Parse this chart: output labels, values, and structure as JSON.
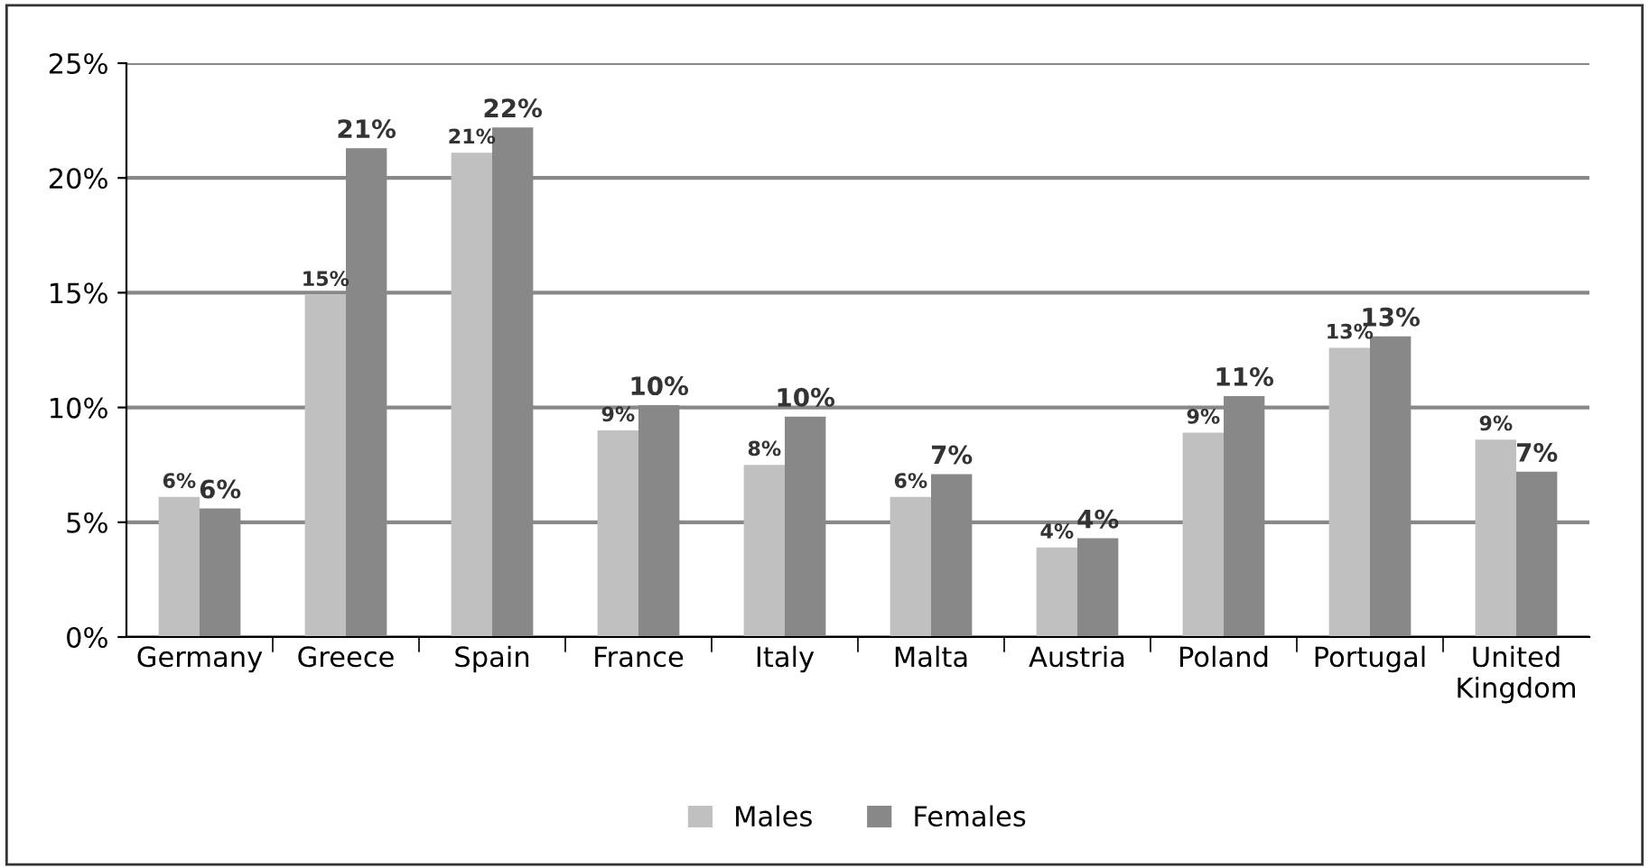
{
  "chart_data": {
    "type": "bar",
    "categories": [
      "Germany",
      "Greece",
      "Spain",
      "France",
      "Italy",
      "Malta",
      "Austria",
      "Poland",
      "Portugal",
      "United\nKingdom"
    ],
    "series": [
      {
        "name": "Males",
        "color": "#c0c0c0",
        "values": [
          6.1,
          14.9,
          21.1,
          9.0,
          7.5,
          6.1,
          3.9,
          8.9,
          12.6,
          8.6
        ],
        "value_labels": [
          "6%",
          "15%",
          "21%",
          "9%",
          "8%",
          "6%",
          "4%",
          "9%",
          "13%",
          "9%"
        ]
      },
      {
        "name": "Females",
        "color": "#888888",
        "values": [
          5.6,
          21.3,
          22.2,
          10.1,
          9.6,
          7.1,
          4.3,
          10.5,
          13.1,
          7.2
        ],
        "value_labels": [
          "6%",
          "21%",
          "22%",
          "10%",
          "10%",
          "7%",
          "4%",
          "11%",
          "13%",
          "7%"
        ]
      }
    ],
    "ylim": [
      0,
      25
    ],
    "yticks": [
      {
        "value": 0,
        "label": "0%"
      },
      {
        "value": 5,
        "label": "5%"
      },
      {
        "value": 10,
        "label": "10%"
      },
      {
        "value": 15,
        "label": "15%"
      },
      {
        "value": 20,
        "label": "20%"
      },
      {
        "value": 25,
        "label": "25%"
      }
    ],
    "grid": "y",
    "legend": "bottom"
  }
}
